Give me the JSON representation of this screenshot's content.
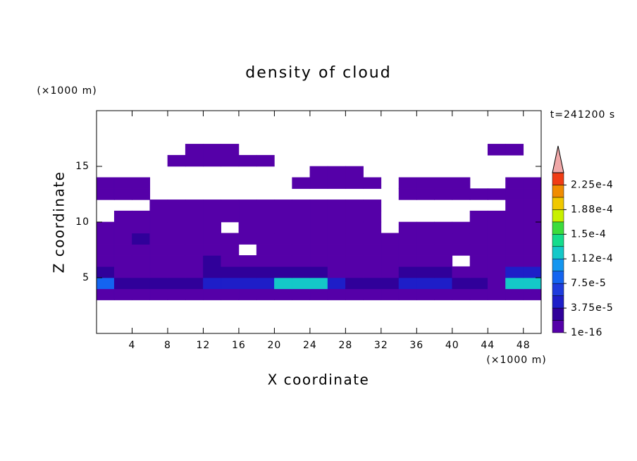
{
  "chart_data": {
    "type": "contour",
    "title": "density of cloud",
    "xlabel": "X coordinate",
    "ylabel": "Z coordinate",
    "xunit": "(×1000 m)",
    "yunit": "(×1000 m)",
    "annotation": "t=241200 s",
    "xlim": [
      0,
      50
    ],
    "ylim": [
      0,
      20
    ],
    "xticks": [
      4,
      8,
      12,
      16,
      20,
      24,
      28,
      32,
      36,
      40,
      44,
      48
    ],
    "yticks": [
      5,
      10,
      15
    ],
    "zlim": [
      1e-16,
      0.00024375
    ],
    "zticks": [
      {
        "value": 1e-16,
        "label": "1e-16"
      },
      {
        "value": 3.75e-05,
        "label": "3.75e-5"
      },
      {
        "value": 7.5e-05,
        "label": "7.5e-5"
      },
      {
        "value": 0.0001125,
        "label": "1.12e-4"
      },
      {
        "value": 0.00015,
        "label": "1.5e-4"
      },
      {
        "value": 0.0001875,
        "label": "1.88e-4"
      },
      {
        "value": 0.000225,
        "label": "2.25e-4"
      }
    ],
    "colors": [
      "#5500a8",
      "#30009a",
      "#1e1ec8",
      "#1e3cdc",
      "#1464f0",
      "#1496f0",
      "#14c8c8",
      "#14dc8c",
      "#3cdc3c",
      "#c8f000",
      "#f0c800",
      "#f08c00",
      "#f03c14"
    ],
    "extend_color": "#f0a8a8",
    "x": [
      1,
      3,
      5,
      7,
      9,
      11,
      13,
      15,
      17,
      19,
      21,
      23,
      25,
      27,
      29,
      31,
      33,
      35,
      37,
      39,
      41,
      43,
      45,
      47,
      49
    ],
    "z": [
      0.5,
      1.5,
      2.5,
      3.5,
      4.5,
      5.5,
      6.5,
      7.5,
      8.5,
      9.5,
      10.5,
      11.5,
      12.5,
      13.5,
      14.5,
      15.5,
      16.5,
      17.5,
      18.5,
      19.5
    ],
    "values": [
      [
        0,
        0,
        0,
        0,
        0,
        0,
        0,
        0,
        0,
        0,
        0,
        0,
        0,
        0,
        0,
        0,
        0,
        0,
        0,
        0,
        0,
        0,
        0,
        0,
        0
      ],
      [
        0,
        0,
        0,
        0,
        0,
        0,
        0,
        0,
        0,
        0,
        0,
        0,
        0,
        0,
        0,
        0,
        0,
        0,
        0,
        0,
        0,
        0,
        0,
        0,
        0
      ],
      [
        0,
        0,
        0,
        0,
        0,
        0,
        0,
        0,
        0,
        0,
        0,
        0,
        0,
        0,
        0,
        0,
        0,
        0,
        0,
        0,
        0,
        0,
        0,
        0,
        0
      ],
      [
        1e-05,
        1e-05,
        1e-05,
        1e-05,
        1e-05,
        1e-05,
        1e-05,
        1e-05,
        1e-05,
        1e-05,
        1e-05,
        1e-05,
        1e-05,
        1e-05,
        1e-05,
        1e-05,
        1e-05,
        1e-05,
        1e-05,
        1e-05,
        1e-05,
        1e-05,
        1e-05,
        1e-05,
        1e-05
      ],
      [
        8e-05,
        3e-05,
        2e-05,
        2e-05,
        2e-05,
        2e-05,
        5e-05,
        5e-05,
        5e-05,
        5e-05,
        0.00012,
        0.00012,
        0.00012,
        5e-05,
        3e-05,
        2e-05,
        2e-05,
        5e-05,
        5e-05,
        5e-05,
        3e-05,
        2e-05,
        1e-05,
        0.00012,
        0.00012
      ],
      [
        3e-05,
        1e-05,
        1e-05,
        1e-05,
        1e-05,
        1e-05,
        2e-05,
        2e-05,
        2e-05,
        2e-05,
        2e-05,
        2e-05,
        2e-05,
        1e-05,
        1e-05,
        1e-05,
        1e-05,
        2e-05,
        2e-05,
        2e-05,
        1e-05,
        1e-05,
        1e-05,
        5e-05,
        5e-05
      ],
      [
        1e-05,
        1e-05,
        1e-05,
        1e-05,
        1e-05,
        1e-05,
        2e-05,
        1e-05,
        1e-05,
        1e-05,
        1e-05,
        1e-05,
        1e-05,
        1e-05,
        1e-05,
        1e-05,
        1e-05,
        1e-05,
        1e-05,
        1e-05,
        0,
        1e-05,
        1e-05,
        1e-05,
        1e-05
      ],
      [
        1e-05,
        1e-05,
        1e-05,
        1e-05,
        1e-05,
        1e-05,
        1e-05,
        1e-05,
        0,
        1e-05,
        1e-05,
        1e-05,
        1e-05,
        1e-05,
        1e-05,
        1e-05,
        1e-05,
        1e-05,
        1e-05,
        1e-05,
        1e-05,
        1e-05,
        1e-05,
        1e-05,
        1e-05
      ],
      [
        1e-05,
        1e-05,
        2e-05,
        1e-05,
        1e-05,
        1e-05,
        1e-05,
        1e-05,
        1e-05,
        1e-05,
        1e-05,
        1e-05,
        1e-05,
        1e-05,
        1e-05,
        1e-05,
        1e-05,
        1e-05,
        1e-05,
        1e-05,
        1e-05,
        1e-05,
        1e-05,
        1e-05,
        1e-05
      ],
      [
        1e-05,
        1e-05,
        1e-05,
        1e-05,
        1e-05,
        1e-05,
        1e-05,
        0,
        1e-05,
        1e-05,
        1e-05,
        1e-05,
        1e-05,
        1e-05,
        1e-05,
        1e-05,
        0,
        1e-05,
        1e-05,
        1e-05,
        1e-05,
        1e-05,
        1e-05,
        1e-05,
        1e-05
      ],
      [
        0,
        1e-05,
        1e-05,
        1e-05,
        1e-05,
        1e-05,
        1e-05,
        1e-05,
        1e-05,
        1e-05,
        1e-05,
        1e-05,
        1e-05,
        1e-05,
        1e-05,
        1e-05,
        0,
        0,
        0,
        0,
        0,
        1e-05,
        1e-05,
        1e-05,
        1e-05
      ],
      [
        0,
        0,
        0,
        1e-05,
        1e-05,
        1e-05,
        1e-05,
        1e-05,
        1e-05,
        1e-05,
        1e-05,
        1e-05,
        1e-05,
        1e-05,
        1e-05,
        1e-05,
        0,
        0,
        0,
        0,
        0,
        0,
        0,
        1e-05,
        1e-05
      ],
      [
        1e-05,
        1e-05,
        1e-05,
        0,
        0,
        0,
        0,
        0,
        0,
        0,
        0,
        0,
        0,
        0,
        0,
        0,
        0,
        1e-05,
        1e-05,
        1e-05,
        1e-05,
        1e-05,
        1e-05,
        1e-05,
        1e-05
      ],
      [
        1e-05,
        1e-05,
        1e-05,
        0,
        0,
        0,
        0,
        0,
        0,
        0,
        0,
        1e-05,
        1e-05,
        1e-05,
        1e-05,
        1e-05,
        0,
        1e-05,
        1e-05,
        1e-05,
        1e-05,
        0,
        0,
        1e-05,
        1e-05
      ],
      [
        0,
        0,
        0,
        0,
        0,
        0,
        0,
        0,
        0,
        0,
        0,
        0,
        1e-05,
        1e-05,
        1e-05,
        0,
        0,
        0,
        0,
        0,
        0,
        0,
        0,
        0,
        0
      ],
      [
        0,
        0,
        0,
        0,
        1e-05,
        1e-05,
        1e-05,
        1e-05,
        1e-05,
        1e-05,
        0,
        0,
        0,
        0,
        0,
        0,
        0,
        0,
        0,
        0,
        0,
        0,
        0,
        0,
        0
      ],
      [
        0,
        0,
        0,
        0,
        0,
        1e-05,
        1e-05,
        1e-05,
        0,
        0,
        0,
        0,
        0,
        0,
        0,
        0,
        0,
        0,
        0,
        0,
        0,
        0,
        1e-05,
        1e-05,
        0
      ],
      [
        0,
        0,
        0,
        0,
        0,
        0,
        0,
        0,
        0,
        0,
        0,
        0,
        0,
        0,
        0,
        0,
        0,
        0,
        0,
        0,
        0,
        0,
        0,
        0,
        0
      ],
      [
        0,
        0,
        0,
        0,
        0,
        0,
        0,
        0,
        0,
        0,
        0,
        0,
        0,
        0,
        0,
        0,
        0,
        0,
        0,
        0,
        0,
        0,
        0,
        0,
        0
      ],
      [
        0,
        0,
        0,
        0,
        0,
        0,
        0,
        0,
        0,
        0,
        0,
        0,
        0,
        0,
        0,
        0,
        0,
        0,
        0,
        0,
        0,
        0,
        0,
        0,
        0
      ]
    ]
  }
}
